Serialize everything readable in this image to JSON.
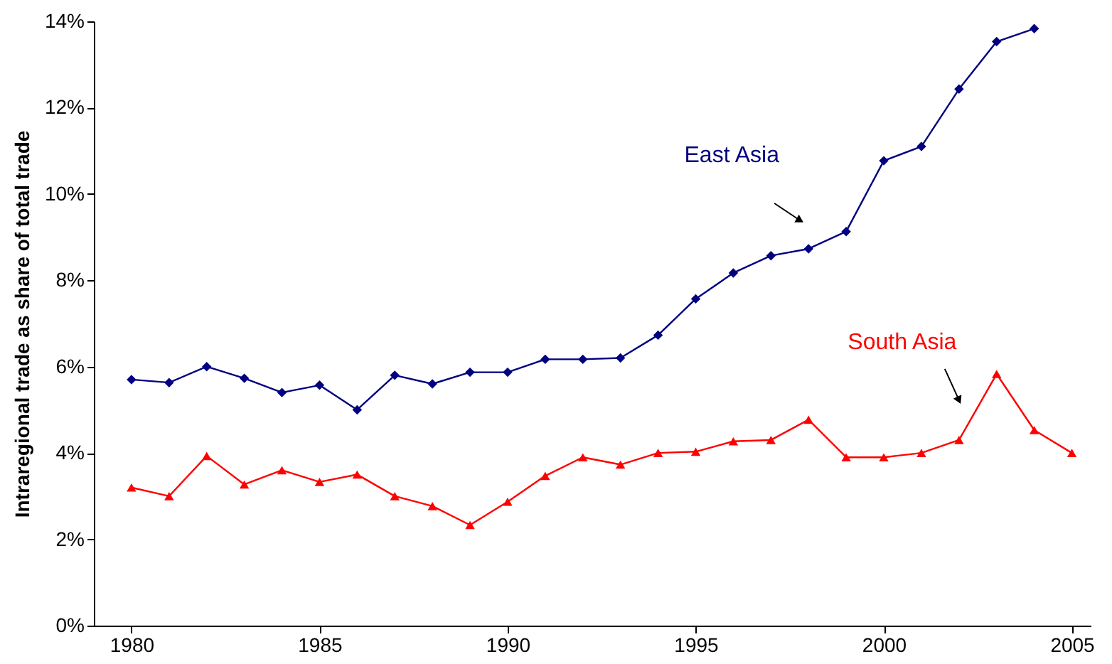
{
  "chart_data": {
    "type": "line",
    "ylabel": "Intraregional trade as share of total trade",
    "x": [
      1980,
      1981,
      1982,
      1983,
      1984,
      1985,
      1986,
      1987,
      1988,
      1989,
      1990,
      1991,
      1992,
      1993,
      1994,
      1995,
      1996,
      1997,
      1998,
      1999,
      2000,
      2001,
      2002,
      2003,
      2004,
      2005
    ],
    "series": [
      {
        "name": "East Asia",
        "color": "#000080",
        "marker": "diamond",
        "values": [
          5.7,
          5.63,
          6.0,
          5.73,
          5.4,
          5.57,
          5.0,
          5.8,
          5.6,
          5.87,
          5.87,
          6.17,
          6.17,
          6.2,
          6.73,
          7.57,
          8.17,
          8.57,
          8.73,
          9.13,
          10.77,
          11.1,
          12.43,
          13.53,
          13.83,
          null
        ]
      },
      {
        "name": "South Asia",
        "color": "#ff0000",
        "marker": "triangle",
        "values": [
          3.2,
          3.0,
          3.93,
          3.27,
          3.6,
          3.33,
          3.5,
          3.0,
          2.77,
          2.33,
          2.87,
          3.47,
          3.9,
          3.73,
          4.0,
          4.03,
          4.27,
          4.3,
          4.77,
          3.9,
          3.9,
          4.0,
          4.3,
          5.83,
          4.53,
          4.0
        ]
      }
    ],
    "xlim": [
      1979,
      2005.5
    ],
    "xticks": [
      1980,
      1985,
      1990,
      1995,
      2000,
      2005
    ],
    "ylim": [
      0,
      14
    ],
    "yticks": [
      {
        "value": 0,
        "label": "0%"
      },
      {
        "value": 2,
        "label": "2%"
      },
      {
        "value": 4,
        "label": "4%"
      },
      {
        "value": 6,
        "label": "6%"
      },
      {
        "value": 8,
        "label": "8%"
      },
      {
        "value": 10,
        "label": "10%"
      },
      {
        "value": 12,
        "label": "12%"
      },
      {
        "value": 14,
        "label": "14%"
      }
    ],
    "grid": false,
    "legend": false
  }
}
